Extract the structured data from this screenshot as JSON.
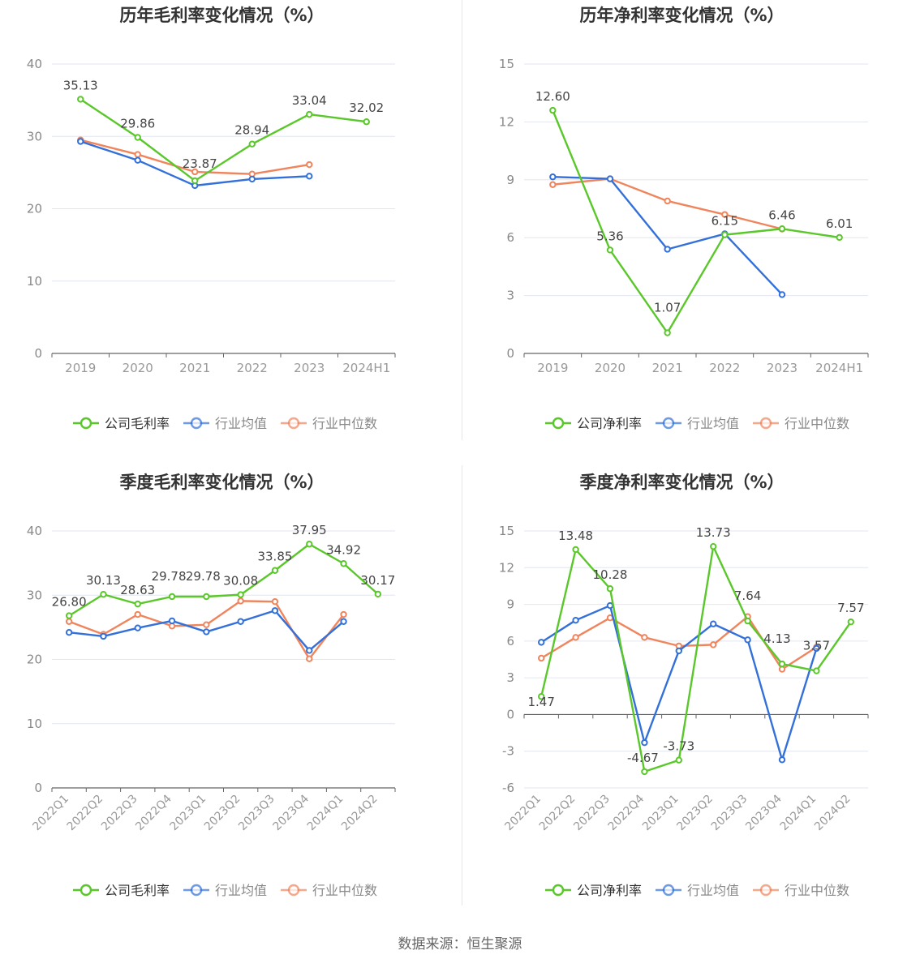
{
  "footer": {
    "source": "数据来源：恒生聚源"
  },
  "legend_labels": {
    "gross": [
      "公司毛利率",
      "行业均值",
      "行业中位数"
    ],
    "net": [
      "公司净利率",
      "行业均值",
      "行业中位数"
    ]
  },
  "colors": {
    "company": "#5ac72a",
    "avg": "#3370d9",
    "median": "#f0845c",
    "grid": "#e3e6ef",
    "axis": "#666666"
  },
  "chart_data": [
    {
      "type": "line",
      "title": "历年毛利率变化情况（%）",
      "categories": [
        "2019",
        "2020",
        "2021",
        "2022",
        "2023",
        "2024H1"
      ],
      "ylim": [
        0,
        40
      ],
      "yticks": [
        0,
        10,
        20,
        30,
        40
      ],
      "grid": true,
      "legend_position": "bottom",
      "series": [
        {
          "name": "公司毛利率",
          "values": [
            35.13,
            29.86,
            23.87,
            28.94,
            33.04,
            32.02
          ],
          "labels": [
            "35.13",
            "29.86",
            "23.87",
            "28.94",
            "33.04",
            "32.02"
          ]
        },
        {
          "name": "行业均值",
          "values": [
            29.3,
            26.7,
            23.2,
            24.1,
            24.5,
            null
          ]
        },
        {
          "name": "行业中位数",
          "values": [
            29.5,
            27.5,
            25.1,
            24.8,
            26.1,
            null
          ]
        }
      ]
    },
    {
      "type": "line",
      "title": "历年净利率变化情况（%）",
      "categories": [
        "2019",
        "2020",
        "2021",
        "2022",
        "2023",
        "2024H1"
      ],
      "ylim": [
        0,
        15
      ],
      "yticks": [
        0,
        3,
        6,
        9,
        12,
        15
      ],
      "grid": true,
      "legend_position": "bottom",
      "series": [
        {
          "name": "公司净利率",
          "values": [
            12.6,
            5.36,
            1.07,
            6.15,
            6.46,
            6.01
          ],
          "labels": [
            "12.60",
            "5.36",
            "1.07",
            "6.15",
            "6.46",
            "6.01"
          ]
        },
        {
          "name": "行业均值",
          "values": [
            9.15,
            9.05,
            5.4,
            6.2,
            3.05,
            null
          ]
        },
        {
          "name": "行业中位数",
          "values": [
            8.75,
            9.05,
            7.9,
            7.2,
            6.45,
            null
          ]
        }
      ]
    },
    {
      "type": "line",
      "title": "季度毛利率变化情况（%）",
      "categories": [
        "2022Q1",
        "2022Q2",
        "2022Q3",
        "2022Q4",
        "2023Q1",
        "2023Q2",
        "2023Q3",
        "2023Q4",
        "2024Q1",
        "2024Q2"
      ],
      "ylim": [
        0,
        40
      ],
      "yticks": [
        0,
        10,
        20,
        30,
        40
      ],
      "grid": true,
      "legend_position": "bottom",
      "series": [
        {
          "name": "公司毛利率",
          "values": [
            26.8,
            30.13,
            28.63,
            29.78,
            29.78,
            30.08,
            33.85,
            37.95,
            34.92,
            30.17
          ],
          "labels": [
            "26.80",
            "30.13",
            "28.63",
            "29.78",
            "29.78",
            "30.08",
            "33.85",
            "37.95",
            "34.92",
            "30.17"
          ]
        },
        {
          "name": "行业均值",
          "values": [
            24.2,
            23.6,
            24.9,
            26.0,
            24.3,
            25.9,
            27.6,
            21.4,
            25.9,
            null
          ]
        },
        {
          "name": "行业中位数",
          "values": [
            25.9,
            23.9,
            27.0,
            25.2,
            25.4,
            29.1,
            29.0,
            20.1,
            27.0,
            null
          ]
        }
      ]
    },
    {
      "type": "line",
      "title": "季度净利率变化情况（%）",
      "categories": [
        "2022Q1",
        "2022Q2",
        "2022Q3",
        "2022Q4",
        "2023Q1",
        "2023Q2",
        "2023Q3",
        "2023Q4",
        "2024Q1",
        "2024Q2"
      ],
      "ylim": [
        -6,
        15
      ],
      "yticks": [
        -6,
        -3,
        0,
        3,
        6,
        9,
        12,
        15
      ],
      "grid": true,
      "legend_position": "bottom",
      "series": [
        {
          "name": "公司净利率",
          "values": [
            1.47,
            13.48,
            10.28,
            -4.67,
            -3.73,
            13.73,
            7.64,
            4.13,
            3.57,
            7.57
          ],
          "labels": [
            "1.47",
            "13.48",
            "10.28",
            "-4.67",
            "-3.73",
            "13.73",
            "7.64",
            "4.13",
            "3.57",
            "7.57"
          ]
        },
        {
          "name": "行业均值",
          "values": [
            5.9,
            7.7,
            8.9,
            -2.3,
            5.2,
            7.4,
            6.1,
            -3.7,
            5.4,
            null
          ]
        },
        {
          "name": "行业中位数",
          "values": [
            4.6,
            6.3,
            7.9,
            6.3,
            5.6,
            5.7,
            8.0,
            3.7,
            5.5,
            null
          ]
        }
      ]
    }
  ]
}
